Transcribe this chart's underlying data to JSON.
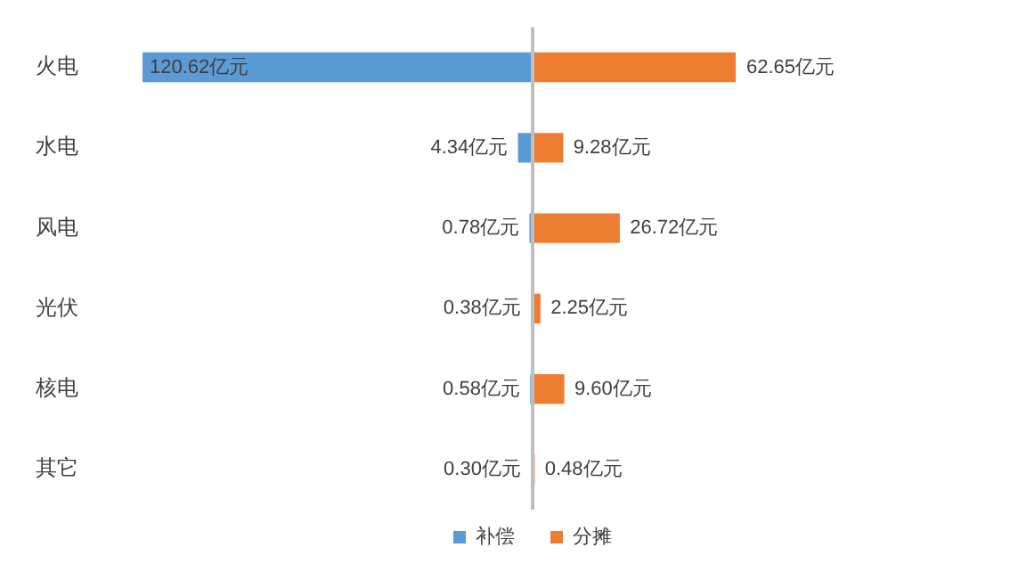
{
  "chart_data": [
    {
      "type": "bar",
      "orientation": "horizontal",
      "categories": [
        "火电",
        "水电",
        "风电",
        "光伏",
        "核电",
        "其它"
      ],
      "xlim": [
        120.62,
        0
      ],
      "tick_labels": "y",
      "grid": false,
      "legend": "bottom right",
      "series": [
        {
          "name": "补偿",
          "color": "#5b9bd5",
          "values": [
            120.62,
            4.34,
            0.78,
            0.38,
            0.58,
            0.3
          ],
          "value_labels": [
            "120.62亿元",
            "4.34亿元",
            "0.78亿元",
            "0.38亿元",
            "0.58亿元",
            "0.30亿元"
          ]
        }
      ]
    },
    {
      "type": "bar",
      "orientation": "horizontal",
      "categories": [
        null,
        null,
        null,
        null,
        null,
        null
      ],
      "xlim": [
        0,
        62.65
      ],
      "tick_labels": false,
      "grid": false,
      "legend": "bottom left",
      "series": [
        {
          "name": "分摊",
          "color": "#ed7d31",
          "values": [
            62.65,
            9.28,
            26.72,
            2.25,
            9.6,
            0.48
          ],
          "value_labels": [
            "62.65亿元",
            "9.28亿元",
            "26.72亿元",
            "2.25亿元",
            "9.60亿元",
            "0.48亿元"
          ]
        }
      ]
    }
  ]
}
